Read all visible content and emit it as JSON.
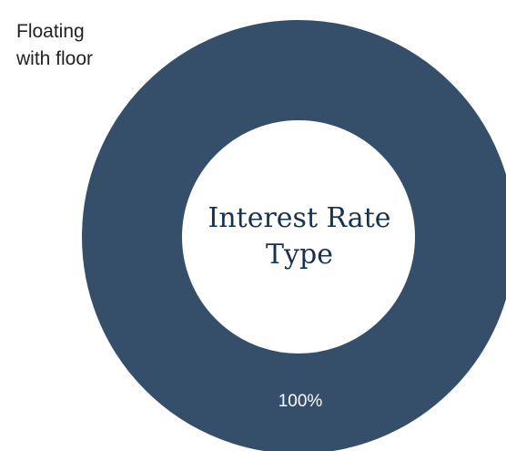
{
  "chart_data": {
    "type": "pie",
    "variant": "donut",
    "center_text": "Interest Rate\nType",
    "slices": [
      {
        "label": "Floating\nwith floor",
        "value": 100,
        "value_label": "100%",
        "color": "#354f6b"
      }
    ],
    "legend": "top-left"
  }
}
